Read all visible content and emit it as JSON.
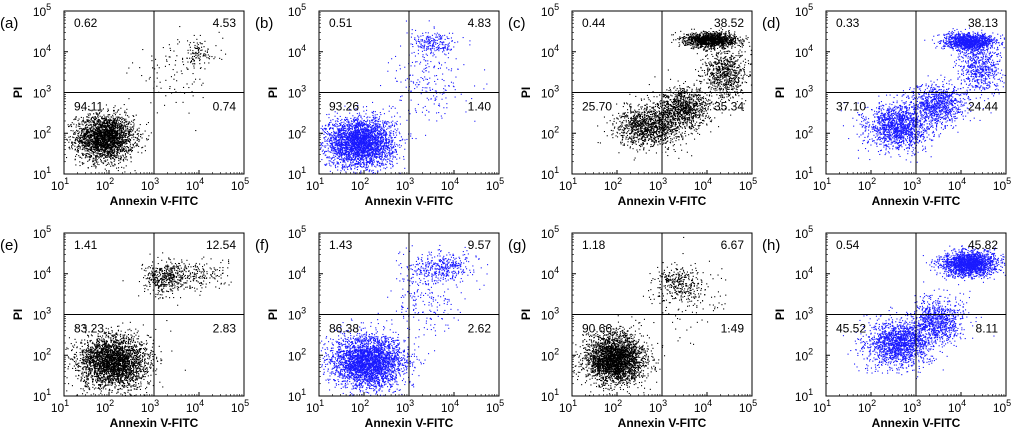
{
  "figure": {
    "xlabel": "Annexin V-FITC",
    "ylabel": "PI",
    "ticks": [
      "10",
      "10",
      "10",
      "10",
      "10"
    ],
    "tick_exponents": [
      "1",
      "2",
      "3",
      "4",
      "5"
    ]
  },
  "chart_data": [
    {
      "type": "scatter",
      "panel": "(a)",
      "color": "#000000",
      "xlabel": "Annexin V-FITC",
      "ylabel": "PI",
      "xscale": "log",
      "yscale": "log",
      "xlim": [
        10,
        100000
      ],
      "ylim": [
        10,
        100000
      ],
      "gate": [
        1000,
        1000
      ],
      "quadrants": {
        "UL": "0.62",
        "UR": "4.53",
        "LL": "94.11",
        "LR": "0.74"
      },
      "clusters": [
        {
          "cx": 80,
          "cy": 80,
          "sx": 0.32,
          "sy": 0.28,
          "n": 2600
        },
        {
          "cx": 9000,
          "cy": 9000,
          "sx": 0.22,
          "sy": 0.18,
          "n": 110
        },
        {
          "cx": 3000,
          "cy": 3000,
          "sx": 0.5,
          "sy": 0.45,
          "n": 90
        }
      ]
    },
    {
      "type": "scatter",
      "panel": "(b)",
      "color": "#1a1aff",
      "xlabel": "Annexin V-FITC",
      "ylabel": "PI",
      "xscale": "log",
      "yscale": "log",
      "xlim": [
        10,
        100000
      ],
      "ylim": [
        10,
        100000
      ],
      "gate": [
        1000,
        1000
      ],
      "quadrants": {
        "UL": "0.51",
        "UR": "4.83",
        "LL": "93.26",
        "LR": "1.40"
      },
      "clusters": [
        {
          "cx": 80,
          "cy": 60,
          "sx": 0.38,
          "sy": 0.3,
          "n": 3200
        },
        {
          "cx": 3500,
          "cy": 16000,
          "sx": 0.25,
          "sy": 0.15,
          "n": 220
        },
        {
          "cx": 2500,
          "cy": 1800,
          "sx": 0.4,
          "sy": 0.45,
          "n": 200
        }
      ]
    },
    {
      "type": "scatter",
      "panel": "(c)",
      "color": "#000000",
      "xlabel": "Annexin V-FITC",
      "ylabel": "PI",
      "xscale": "log",
      "yscale": "log",
      "xlim": [
        10,
        100000
      ],
      "ylim": [
        10,
        100000
      ],
      "gate": [
        1000,
        1000
      ],
      "quadrants": {
        "UL": "0.44",
        "UR": "38.52",
        "LL": "25.70",
        "LR": "35.34"
      },
      "clusters": [
        {
          "cx": 500,
          "cy": 150,
          "sx": 0.35,
          "sy": 0.25,
          "n": 1200
        },
        {
          "cx": 3000,
          "cy": 400,
          "sx": 0.3,
          "sy": 0.25,
          "n": 1000
        },
        {
          "cx": 12000,
          "cy": 20000,
          "sx": 0.28,
          "sy": 0.09,
          "n": 1400
        },
        {
          "cx": 25000,
          "cy": 3000,
          "sx": 0.25,
          "sy": 0.3,
          "n": 700
        }
      ]
    },
    {
      "type": "scatter",
      "panel": "(d)",
      "color": "#1a1aff",
      "xlabel": "Annexin V-FITC",
      "ylabel": "PI",
      "xscale": "log",
      "yscale": "log",
      "xlim": [
        10,
        100000
      ],
      "ylim": [
        10,
        100000
      ],
      "gate": [
        1000,
        1000
      ],
      "quadrants": {
        "UL": "0.33",
        "UR": "38.13",
        "LL": "37.10",
        "LR": "24.44"
      },
      "clusters": [
        {
          "cx": 400,
          "cy": 150,
          "sx": 0.35,
          "sy": 0.28,
          "n": 1500
        },
        {
          "cx": 3000,
          "cy": 500,
          "sx": 0.3,
          "sy": 0.25,
          "n": 900
        },
        {
          "cx": 15000,
          "cy": 18000,
          "sx": 0.28,
          "sy": 0.1,
          "n": 1300
        },
        {
          "cx": 25000,
          "cy": 4000,
          "sx": 0.25,
          "sy": 0.3,
          "n": 600
        }
      ]
    },
    {
      "type": "scatter",
      "panel": "(e)",
      "color": "#000000",
      "xlabel": "Annexin V-FITC",
      "ylabel": "PI",
      "xscale": "log",
      "yscale": "log",
      "xlim": [
        10,
        100000
      ],
      "ylim": [
        10,
        100000
      ],
      "gate": [
        1000,
        1000
      ],
      "quadrants": {
        "UL": "1.41",
        "UR": "12.54",
        "LL": "83.23",
        "LR": "2.83"
      },
      "clusters": [
        {
          "cx": 120,
          "cy": 70,
          "sx": 0.38,
          "sy": 0.32,
          "n": 3000
        },
        {
          "cx": 1600,
          "cy": 8000,
          "sx": 0.22,
          "sy": 0.2,
          "n": 380
        },
        {
          "cx": 8000,
          "cy": 9000,
          "sx": 0.35,
          "sy": 0.2,
          "n": 220
        }
      ]
    },
    {
      "type": "scatter",
      "panel": "(f)",
      "color": "#1a1aff",
      "xlabel": "Annexin V-FITC",
      "ylabel": "PI",
      "xscale": "log",
      "yscale": "log",
      "xlim": [
        10,
        100000
      ],
      "ylim": [
        10,
        100000
      ],
      "gate": [
        1000,
        1000
      ],
      "quadrants": {
        "UL": "1.43",
        "UR": "9.57",
        "LL": "86.38",
        "LR": "2.62"
      },
      "clusters": [
        {
          "cx": 120,
          "cy": 70,
          "sx": 0.4,
          "sy": 0.32,
          "n": 3200
        },
        {
          "cx": 5000,
          "cy": 15000,
          "sx": 0.35,
          "sy": 0.18,
          "n": 380
        },
        {
          "cx": 2500,
          "cy": 2500,
          "sx": 0.4,
          "sy": 0.45,
          "n": 200
        }
      ]
    },
    {
      "type": "scatter",
      "panel": "(g)",
      "color": "#000000",
      "xlabel": "Annexin V-FITC",
      "ylabel": "PI",
      "xscale": "log",
      "yscale": "log",
      "xlim": [
        10,
        100000
      ],
      "ylim": [
        10,
        100000
      ],
      "gate": [
        1000,
        1000
      ],
      "quadrants": {
        "UL": "1.18",
        "UR": "6.67",
        "LL": "90.66",
        "LR": "1.49"
      },
      "clusters": [
        {
          "cx": 90,
          "cy": 80,
          "sx": 0.32,
          "sy": 0.3,
          "n": 3000
        },
        {
          "cx": 2200,
          "cy": 6000,
          "sx": 0.25,
          "sy": 0.22,
          "n": 260
        },
        {
          "cx": 4000,
          "cy": 3000,
          "sx": 0.45,
          "sy": 0.45,
          "n": 150
        }
      ]
    },
    {
      "type": "scatter",
      "panel": "(h)",
      "color": "#1a1aff",
      "xlabel": "Annexin V-FITC",
      "ylabel": "PI",
      "xscale": "log",
      "yscale": "log",
      "xlim": [
        10,
        100000
      ],
      "ylim": [
        10,
        100000
      ],
      "gate": [
        1000,
        1000
      ],
      "quadrants": {
        "UL": "0.54",
        "UR": "45.82",
        "LL": "45.52",
        "LR": "8.11"
      },
      "clusters": [
        {
          "cx": 400,
          "cy": 200,
          "sx": 0.35,
          "sy": 0.28,
          "n": 1600
        },
        {
          "cx": 3000,
          "cy": 700,
          "sx": 0.3,
          "sy": 0.28,
          "n": 900
        },
        {
          "cx": 15000,
          "cy": 18000,
          "sx": 0.3,
          "sy": 0.15,
          "n": 1900
        }
      ]
    }
  ]
}
